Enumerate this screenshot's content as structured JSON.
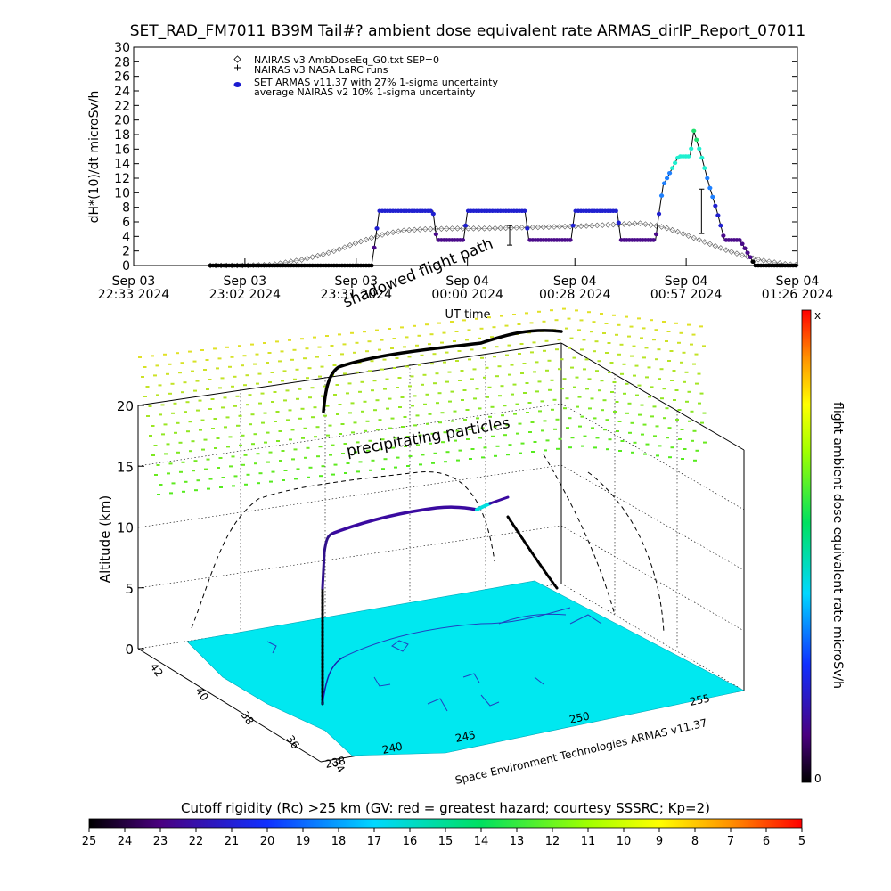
{
  "chart_data": [
    {
      "type": "line",
      "title": "SET_RAD_FM7011  B39M Tail#? ambient dose equivalent rate ARMAS_dirIP_Report_07011",
      "ylabel": "dH*(10)/dt microSv/h",
      "xlabel": "UT time",
      "ylim": [
        0,
        30
      ],
      "yticks": [
        0,
        2,
        4,
        6,
        8,
        10,
        12,
        14,
        16,
        18,
        20,
        22,
        24,
        26,
        28,
        30
      ],
      "xlim": [
        0,
        173
      ],
      "xticks": [
        {
          "x": 0,
          "line1": "Sep 03",
          "line2": "22:33 2024"
        },
        {
          "x": 29,
          "line1": "Sep 03",
          "line2": "23:02 2024"
        },
        {
          "x": 58,
          "line1": "Sep 03",
          "line2": "23:31 2024"
        },
        {
          "x": 87,
          "line1": "Sep 04",
          "line2": "00:00 2024"
        },
        {
          "x": 115,
          "line1": "Sep 04",
          "line2": "00:28 2024"
        },
        {
          "x": 144,
          "line1": "Sep 04",
          "line2": "00:57 2024"
        },
        {
          "x": 173,
          "line1": "Sep 04",
          "line2": "01:26 2024"
        }
      ],
      "legend": [
        {
          "symbol": "diamond",
          "label": "NAIRAS v3 AmbDoseEq_G0.txt SEP=0"
        },
        {
          "symbol": "plus",
          "label": "NAIRAS v3 NASA LaRC runs"
        },
        {
          "symbol": "dot",
          "label": "SET ARMAS v11.37 with 27% 1-sigma uncertainty"
        },
        {
          "symbol": "none",
          "label": "average NAIRAS v2 10% 1-sigma uncertainty"
        }
      ],
      "legend_position": "top-left",
      "series": [
        {
          "kind": "nairas_v3",
          "x": [
            20,
            28,
            36,
            44,
            50,
            54,
            58,
            62,
            66,
            70,
            76,
            84,
            92,
            100,
            108,
            116,
            124,
            132,
            138,
            142,
            146,
            150,
            154,
            158,
            162,
            166,
            170,
            173
          ],
          "y": [
            0,
            0,
            0.1,
            0.8,
            1.6,
            2.3,
            3.1,
            3.8,
            4.4,
            4.8,
            5.0,
            5.1,
            5.1,
            5.2,
            5.3,
            5.4,
            5.6,
            5.8,
            5.3,
            4.6,
            3.8,
            3.0,
            2.2,
            1.5,
            0.9,
            0.5,
            0.2,
            0.1
          ]
        },
        {
          "kind": "armas",
          "x": [
            20,
            62,
            63,
            64,
            68,
            72,
            76,
            78,
            79,
            80,
            84,
            86,
            87,
            88,
            92,
            96,
            100,
            102,
            103,
            104,
            108,
            112,
            114,
            115,
            116,
            120,
            124,
            126,
            127,
            128,
            132,
            136,
            137,
            138,
            142,
            144,
            145,
            146,
            148,
            150,
            152,
            154,
            158,
            162,
            166,
            170,
            173
          ],
          "y": [
            0,
            0,
            3.5,
            7.5,
            7.5,
            7.5,
            7.5,
            7.5,
            3.5,
            3.5,
            3.5,
            3.5,
            7.5,
            7.5,
            7.5,
            7.5,
            7.5,
            7.5,
            3.5,
            3.5,
            3.5,
            3.5,
            3.5,
            7.5,
            7.5,
            7.5,
            7.5,
            7.5,
            3.5,
            3.5,
            3.5,
            3.5,
            7.5,
            11,
            15,
            15,
            15,
            18.5,
            15,
            11,
            7.5,
            3.5,
            3.5,
            0,
            0,
            0,
            0
          ]
        }
      ],
      "error_bars": [
        {
          "x": 98,
          "low": 2.8,
          "high": 5.5
        },
        {
          "x": 148,
          "low": 4.4,
          "high": 10.5
        }
      ]
    },
    {
      "type": "3d-trajectory",
      "zlabel": "Altitude (km)",
      "zticks": [
        0,
        5,
        10,
        15,
        20
      ],
      "lat_ticks": [
        34,
        36,
        38,
        40,
        42
      ],
      "lon_ticks": [
        238,
        240,
        245,
        250,
        255
      ],
      "annotations": [
        "shadowed flight path",
        "precipitating particles"
      ],
      "credit": "Space Environment Technologies ARMAS v11.37"
    },
    {
      "type": "colorbar",
      "orientation": "vertical",
      "label": "flight ambient dose equivalent rate microSv/h",
      "top_label": "x",
      "bottom_label": "0"
    },
    {
      "type": "colorbar",
      "orientation": "horizontal",
      "title": "Cutoff rigidity (Rc) >25 km (GV: red = greatest hazard; courtesy SSSRC; Kp=2)",
      "ticks": [
        25,
        24,
        23,
        22,
        21,
        20,
        19,
        18,
        17,
        16,
        15,
        14,
        13,
        12,
        11,
        10,
        9,
        8,
        7,
        6,
        5
      ]
    }
  ]
}
